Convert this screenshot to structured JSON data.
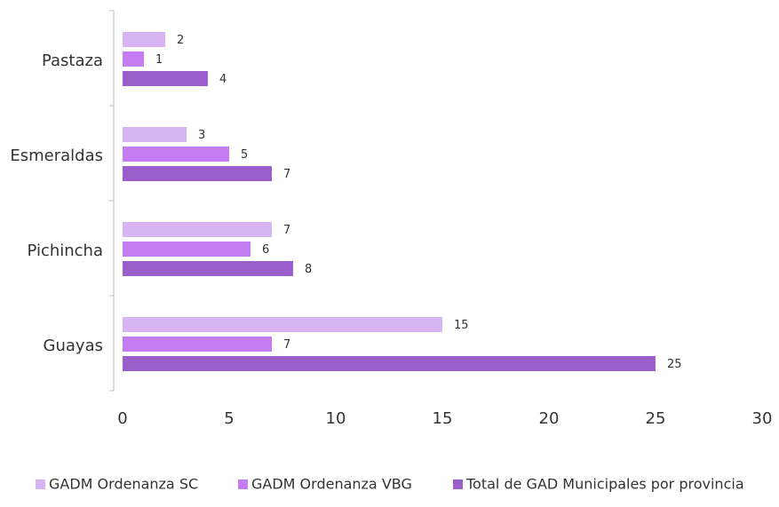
{
  "chart_data": {
    "type": "bar",
    "orientation": "horizontal",
    "categories": [
      "Pastaza",
      "Esmeraldas",
      "Pichincha",
      "Guayas"
    ],
    "series": [
      {
        "name": "GADM Ordenanza SC",
        "color": "#d8b4f3",
        "values": [
          2,
          3,
          7,
          15
        ]
      },
      {
        "name": "GADM Ordenanza VBG",
        "color": "#c47cf5",
        "values": [
          1,
          5,
          6,
          7
        ]
      },
      {
        "name": "Total de GAD Municipales por provincia",
        "color": "#9b5fcc",
        "values": [
          4,
          7,
          8,
          25
        ]
      }
    ],
    "xlim": [
      0,
      30
    ],
    "xticks": [
      0,
      5,
      10,
      15,
      20,
      25,
      30
    ],
    "legend": "bottom"
  }
}
